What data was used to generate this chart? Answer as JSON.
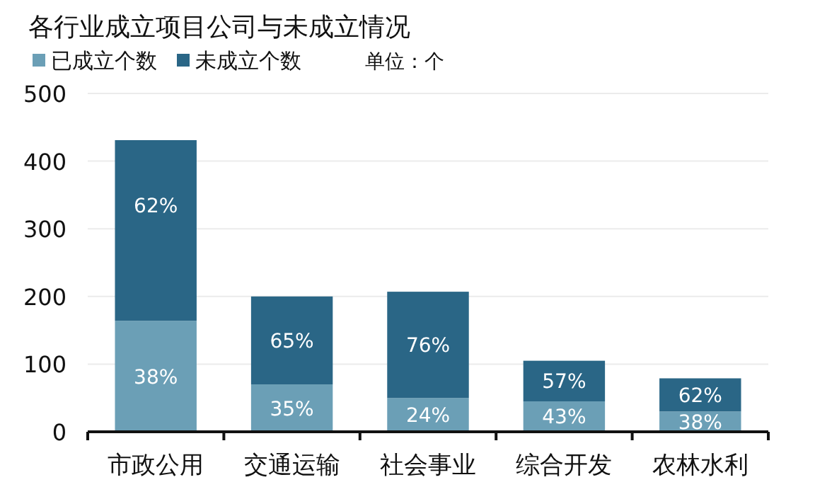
{
  "chart_data": {
    "type": "bar",
    "title": "各行业成立项目公司与未成立情况",
    "categories": [
      "市政公用",
      "交通运输",
      "社会事业",
      "综合开发",
      "农林水利"
    ],
    "stacked": true,
    "series": [
      {
        "name": "已成立个数",
        "color": "#6b9fb6",
        "values": [
          164,
          70,
          50,
          45,
          30
        ]
      },
      {
        "name": "未成立个数",
        "color": "#2a6686",
        "values": [
          267,
          130,
          157,
          60,
          49
        ]
      }
    ],
    "ylim": [
      0,
      500
    ],
    "yticks": [
      0,
      100,
      200,
      300,
      400,
      500
    ],
    "grid": "y",
    "legend": "top left",
    "annotations": [
      "单位：个",
      {
        "text": "38%",
        "x": "市政公用",
        "y": 164
      },
      {
        "text": "62%",
        "x": "市政公用",
        "y": 431
      },
      {
        "text": "35%",
        "x": "交通运输",
        "y": 70
      },
      {
        "text": "65%",
        "x": "交通运输",
        "y": 200
      },
      {
        "text": "24%",
        "x": "社会事业",
        "y": 50
      },
      {
        "text": "76%",
        "x": "社会事业",
        "y": 207
      },
      {
        "text": "43%",
        "x": "综合开发",
        "y": 45
      },
      {
        "text": "57%",
        "x": "综合开发",
        "y": 105
      },
      {
        "text": "38%",
        "x": "农林水利",
        "y": 30
      },
      {
        "text": "62%",
        "x": "农林水利",
        "y": 79
      }
    ]
  }
}
